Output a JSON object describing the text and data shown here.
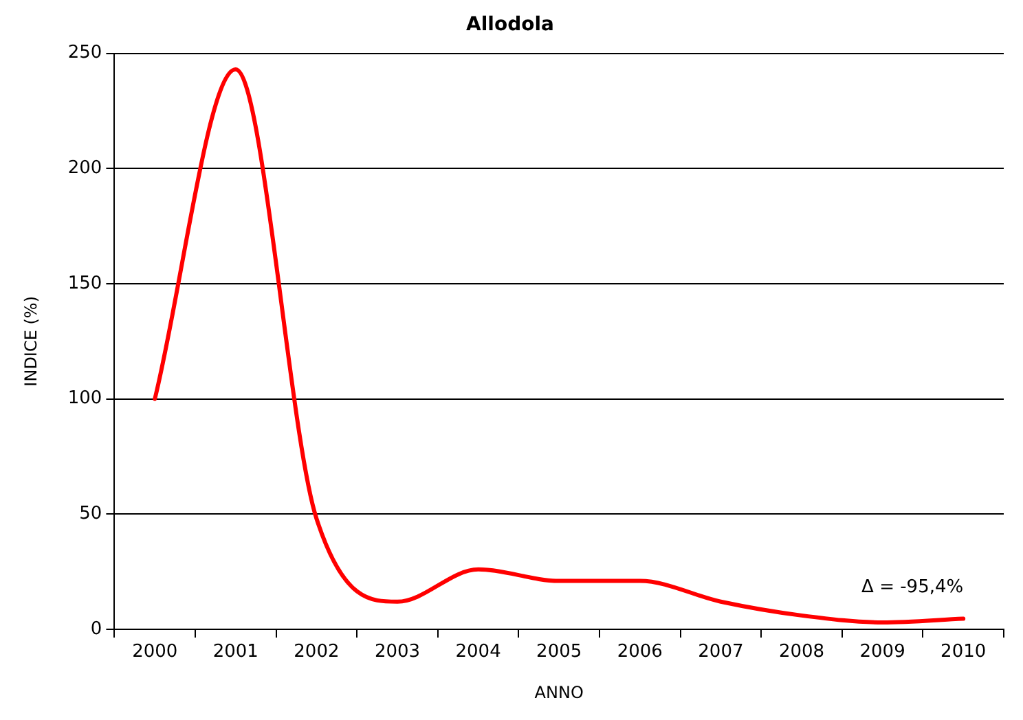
{
  "chart_data": {
    "type": "line",
    "title": "Allodola",
    "xlabel": "ANNO",
    "ylabel": "INDICE (%)",
    "categories": [
      "2000",
      "2001",
      "2002",
      "2003",
      "2004",
      "2005",
      "2006",
      "2007",
      "2008",
      "2009",
      "2010"
    ],
    "series": [
      {
        "color": "#ff0000",
        "values": [
          100,
          243,
          48,
          12,
          26,
          21,
          21,
          12,
          6,
          3,
          4.6
        ]
      }
    ],
    "ylim": [
      0,
      250
    ],
    "yticks": [
      0,
      50,
      100,
      150,
      200,
      250
    ],
    "grid": "y",
    "legend": false,
    "marker": "none",
    "line_style": "solid",
    "annotations": [
      {
        "text": "Δ = -95,4%",
        "x": "2010",
        "y": 4.6
      }
    ]
  }
}
